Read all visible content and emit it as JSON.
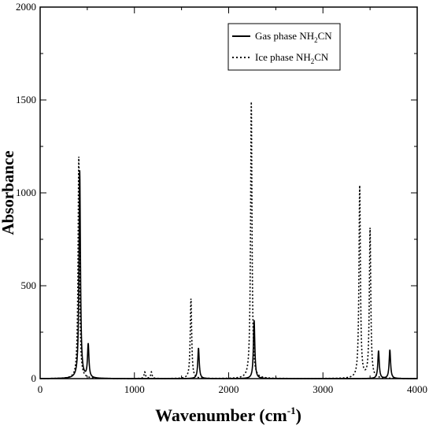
{
  "chart_data": {
    "type": "line",
    "xlabel": "Wavenumber (cm",
    "xlabel_sup": "-1",
    "xlabel_end": ")",
    "ylabel": "Absorbance",
    "xlim": [
      0,
      4000
    ],
    "ylim": [
      0,
      2000
    ],
    "xticks": [
      0,
      1000,
      2000,
      3000,
      4000
    ],
    "yticks": [
      0,
      500,
      1000,
      1500,
      2000
    ],
    "xtick_labels": [
      "0",
      "1000",
      "2000",
      "3000",
      "4000"
    ],
    "ytick_labels": [
      "0",
      "500",
      "1000",
      "1500",
      "2000"
    ],
    "grid": false,
    "legend_position": "top-right",
    "series": [
      {
        "name": "Gas phase NH2CN",
        "name_parts": [
          "Gas phase NH",
          "2",
          "CN"
        ],
        "style": "solid",
        "peaks": [
          {
            "x": 420,
            "y": 1120
          },
          {
            "x": 510,
            "y": 180
          },
          {
            "x": 1680,
            "y": 165
          },
          {
            "x": 2270,
            "y": 315
          },
          {
            "x": 3590,
            "y": 150
          },
          {
            "x": 3710,
            "y": 155
          }
        ]
      },
      {
        "name": "Ice phase NH2CN",
        "name_parts": [
          "Ice phase NH",
          "2",
          "CN"
        ],
        "style": "dotted",
        "peaks": [
          {
            "x": 410,
            "y": 1195
          },
          {
            "x": 1110,
            "y": 35
          },
          {
            "x": 1180,
            "y": 35
          },
          {
            "x": 1600,
            "y": 430
          },
          {
            "x": 2240,
            "y": 1490
          },
          {
            "x": 3390,
            "y": 1035
          },
          {
            "x": 3500,
            "y": 805
          }
        ]
      }
    ]
  },
  "colors": {
    "line": "#000000",
    "background": "#ffffff"
  }
}
